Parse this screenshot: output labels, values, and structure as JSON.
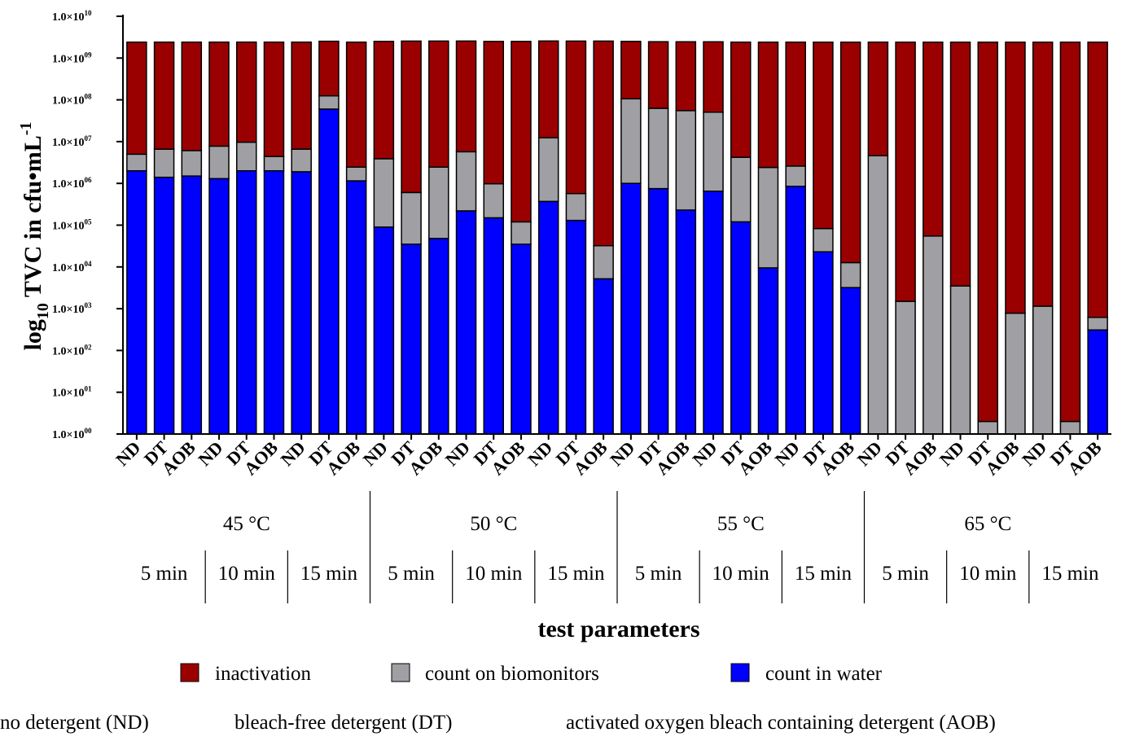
{
  "chart_data": {
    "type": "bar",
    "stacked": true,
    "log_scale": true,
    "ylabel": {
      "base": "log",
      "sub": "10",
      "main": " TVC in cfu•mL",
      "sup": "-1"
    },
    "xlabel": "test parameters",
    "yticks": [
      {
        "mant": "1.0×10",
        "exp": "00"
      },
      {
        "mant": "1.0×10",
        "exp": "01"
      },
      {
        "mant": "1.0×10",
        "exp": "02"
      },
      {
        "mant": "1.0×10",
        "exp": "03"
      },
      {
        "mant": "1.0×10",
        "exp": "04"
      },
      {
        "mant": "1.0×10",
        "exp": "05"
      },
      {
        "mant": "1.0×10",
        "exp": "06"
      },
      {
        "mant": "1.0×10",
        "exp": "07"
      },
      {
        "mant": "1.0×10",
        "exp": "08"
      },
      {
        "mant": "1.0×10",
        "exp": "09"
      },
      {
        "mant": "1.0×10",
        "exp": "10"
      }
    ],
    "ylim": [
      1,
      10000000000
    ],
    "categories": [
      "ND",
      "DT",
      "AOB",
      "ND",
      "DT",
      "AOB",
      "ND",
      "DT",
      "AOB",
      "ND",
      "DT",
      "AOB",
      "ND",
      "DT",
      "AOB",
      "ND",
      "DT",
      "AOB",
      "ND",
      "DT",
      "AOB",
      "ND",
      "DT",
      "AOB",
      "ND",
      "DT",
      "AOB",
      "ND",
      "DT",
      "AOB",
      "ND",
      "DT",
      "AOB",
      "ND",
      "DT",
      "AOB"
    ],
    "temperature_groups": [
      "45 °C",
      "50 °C",
      "55 °C",
      "65 °C"
    ],
    "time_groups": [
      "5 min",
      "10 min",
      "15 min",
      "5 min",
      "10 min",
      "15 min",
      "5 min",
      "10 min",
      "15 min",
      "5 min",
      "10 min",
      "15 min"
    ],
    "series": [
      {
        "name": "count in water",
        "color": "#0000ff",
        "values": [
          2000000,
          1400000,
          1500000,
          1300000,
          2000000,
          2000000,
          1900000,
          60000000,
          1150000,
          90000,
          35000,
          48000,
          220000,
          150000,
          35000,
          370000,
          130000,
          5200,
          1000000,
          750000,
          230000,
          650000,
          120000,
          9500,
          850000,
          23000,
          3200,
          1,
          1,
          1,
          1,
          1,
          1,
          1,
          1,
          310
        ]
      },
      {
        "name": "count on biomonitors",
        "color": "#a0a0a4",
        "values": [
          3000000,
          5200000,
          4600000,
          6500000,
          7700000,
          2400000,
          4700000,
          65000000,
          1300000,
          3800000,
          570000,
          2400000,
          5500000,
          830000,
          85000,
          12000000,
          440000,
          27000,
          105000000,
          62000000,
          55000000,
          50000000,
          4100000,
          2400000,
          1750000,
          60000,
          9500,
          4600000,
          1500,
          55000,
          3500,
          1,
          780,
          1150,
          1,
          310
        ]
      },
      {
        "name": "inactivation",
        "color": "#9b0000",
        "values": [
          2400000000,
          2400000000,
          2400000000,
          2400000000,
          2400000000,
          2400000000,
          2400000000,
          2400000000,
          2400000000,
          2500000000,
          2550000000,
          2550000000,
          2550000000,
          2500000000,
          2500000000,
          2550000000,
          2550000000,
          2550000000,
          2400000000,
          2400000000,
          2400000000,
          2400000000,
          2400000000,
          2400000000,
          2400000000,
          2400000000,
          2400000000,
          2400000000,
          2400000000,
          2400000000,
          2400000000,
          2400000000,
          2400000000,
          2400000000,
          2400000000,
          2400000000
        ]
      }
    ],
    "legend": {
      "placement": "bottom",
      "entries": [
        "inactivation",
        "count on biomonitors",
        "count in water"
      ]
    }
  },
  "footnotes": [
    "no detergent (ND)",
    "bleach-free detergent (DT)",
    "activated oxygen bleach containing detergent (AOB)"
  ]
}
